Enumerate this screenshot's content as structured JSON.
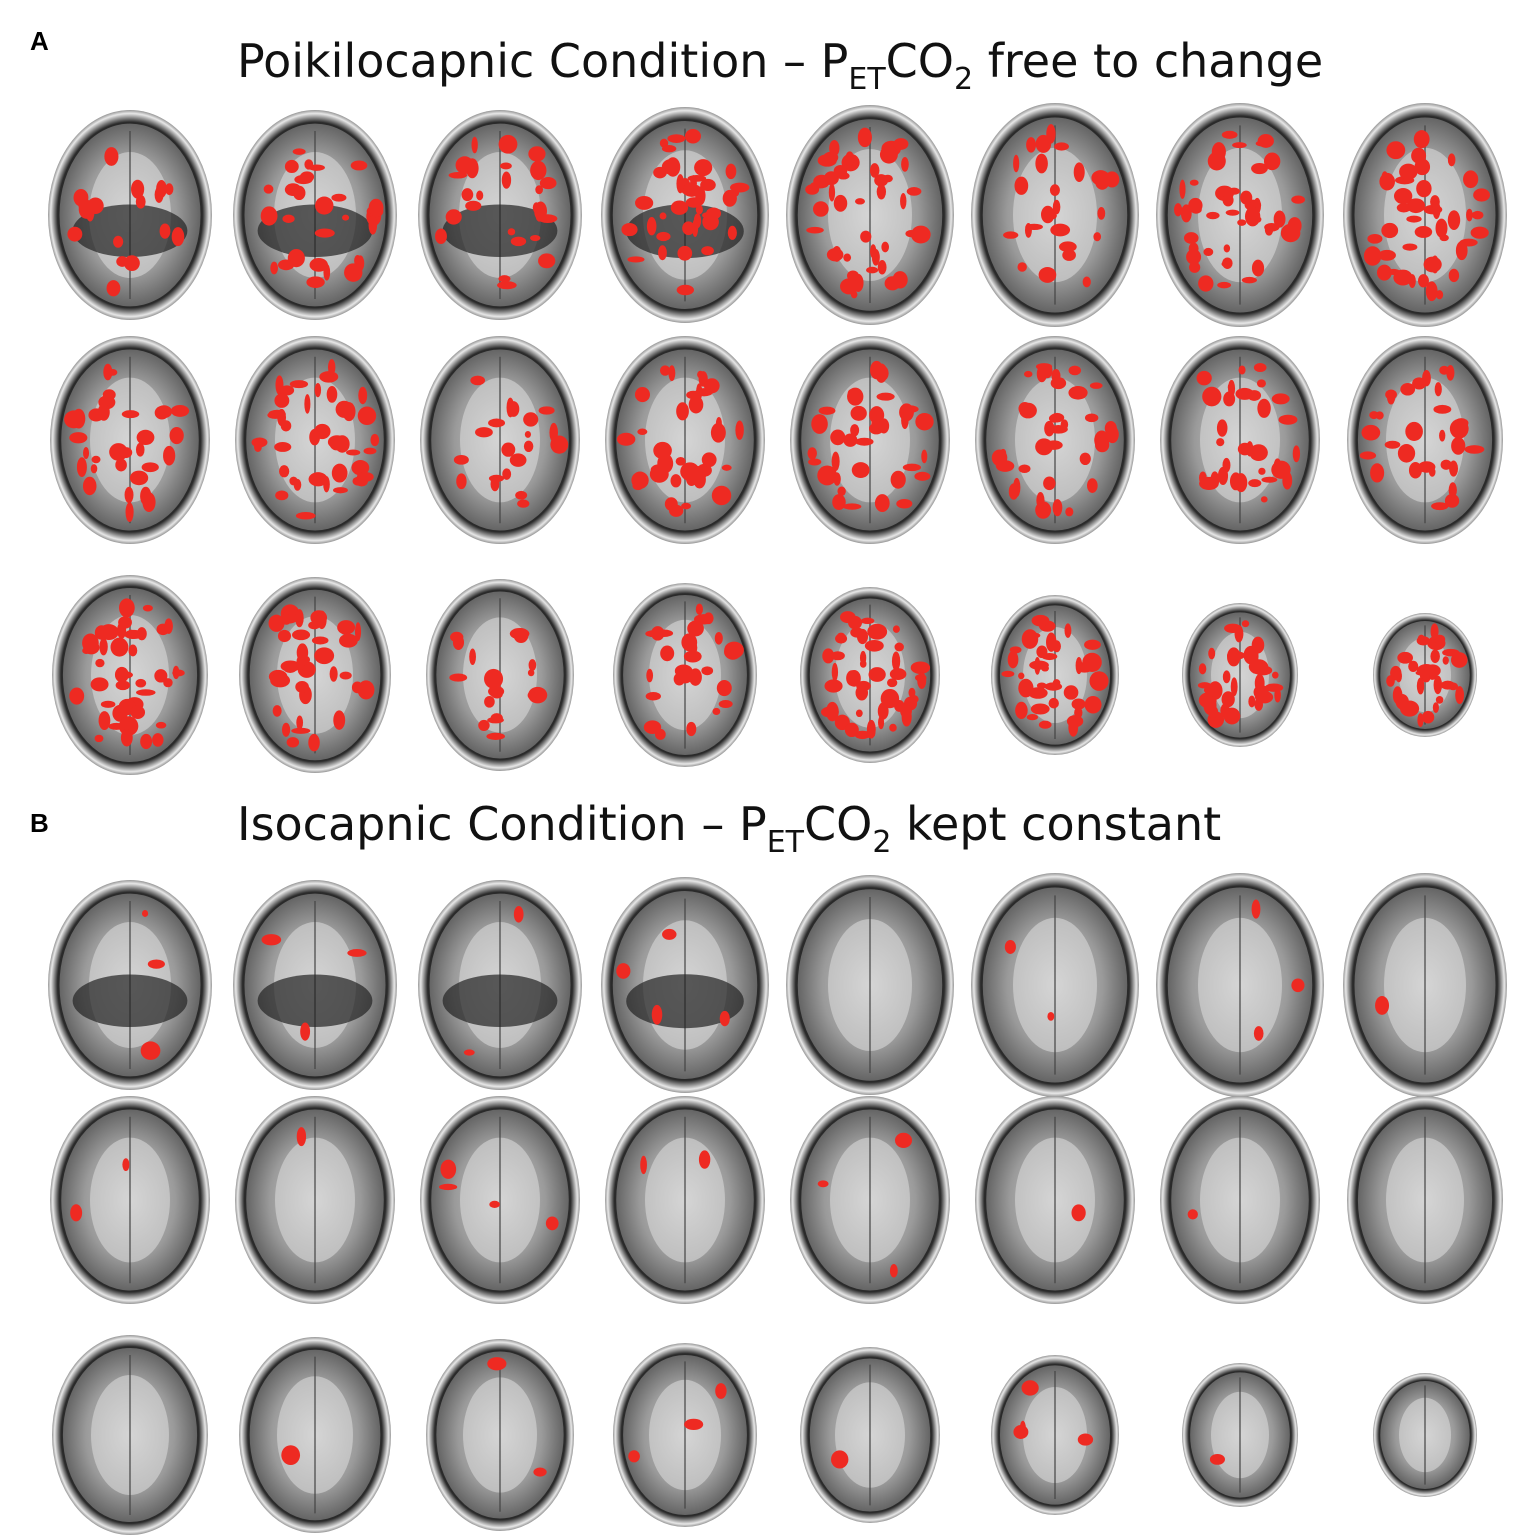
{
  "panels": [
    {
      "label": "A",
      "title": {
        "lead": "Poikilocapnic Condition – P",
        "sub1": "ET",
        "mid": "CO",
        "sub2": "2",
        "tail": " free to change"
      }
    },
    {
      "label": "B",
      "title": {
        "lead": "Isocapnic Condition – P",
        "sub1": "ET",
        "mid": "CO",
        "sub2": "2",
        "tail": " kept constant"
      }
    }
  ]
}
